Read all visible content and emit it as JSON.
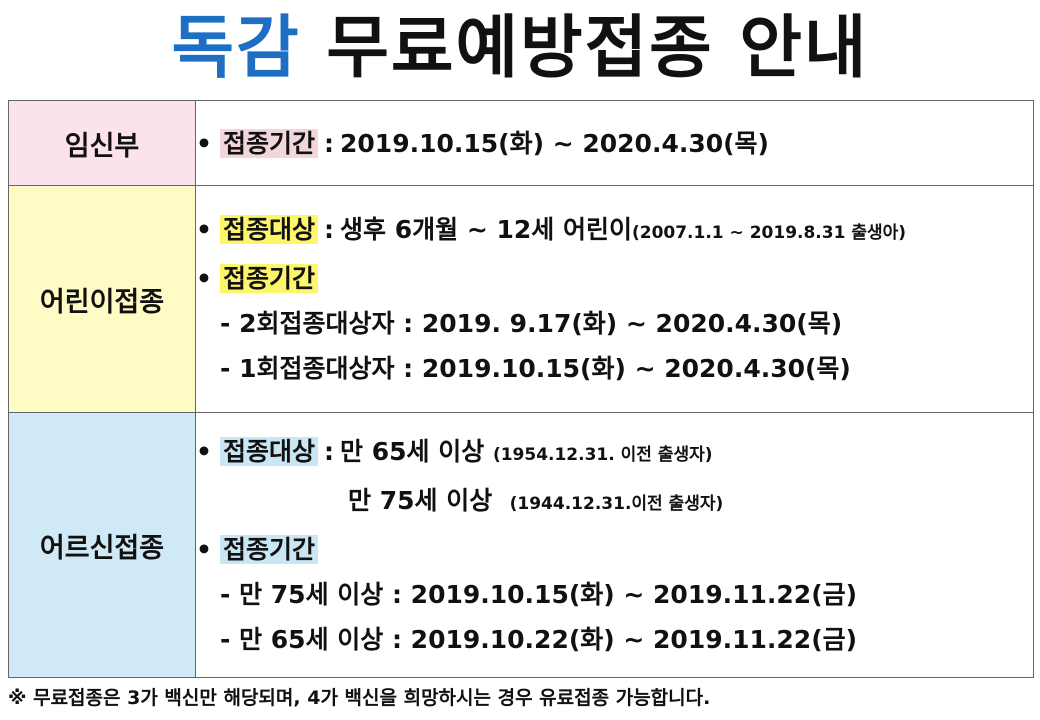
{
  "title": {
    "accent": "독감",
    "rest": "무료예방접종 안내"
  },
  "rows": [
    {
      "category": "임신부",
      "lines": {
        "period": {
          "term": "접종기간",
          "value": "2019.10.15(화) ~ 2020.4.30(목)"
        }
      }
    },
    {
      "category": "어린이접종",
      "lines": {
        "target": {
          "term": "접종대상",
          "value": "생후 6개월 ~ 12세 어린이",
          "note": "(2007.1.1 ~ 2019.8.31 출생아)"
        },
        "period": {
          "term": "접종기간"
        },
        "sub1": "- 2회접종대상자 : 2019. 9.17(화) ~ 2020.4.30(목)",
        "sub2": "- 1회접종대상자 : 2019.10.15(화) ~ 2020.4.30(목)"
      }
    },
    {
      "category": "어르신접종",
      "lines": {
        "target": {
          "term": "접종대상",
          "value": "만 65세 이상",
          "note": "(1954.12.31. 이전 출생자)"
        },
        "target2": {
          "value": "만 75세 이상",
          "note": "(1944.12.31.이전 출생자)"
        },
        "period": {
          "term": "접종기간"
        },
        "sub1": "- 만 75세 이상 : 2019.10.15(화) ~ 2019.11.22(금)",
        "sub2": "- 만 65세 이상 : 2019.10.22(화) ~ 2019.11.22(금)"
      }
    }
  ],
  "footnote": "※ 무료접종은 3가 백신만 해당되며, 4가 백신을 희망하시는 경우 유료접종 가능합니다."
}
